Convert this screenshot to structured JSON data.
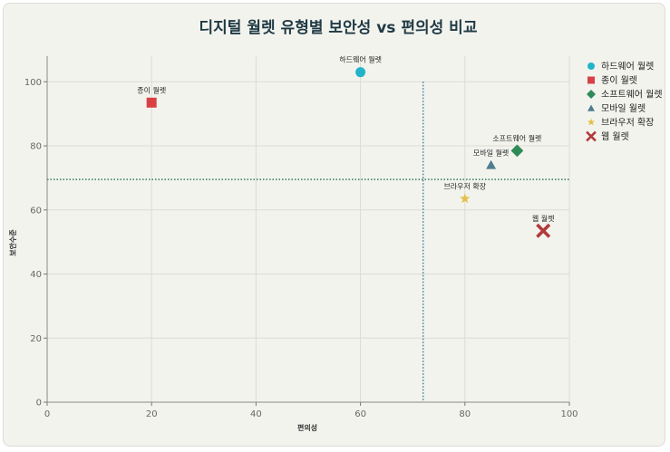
{
  "chart_data": {
    "type": "scatter",
    "title": "디지털 월렛 유형별 보안성 vs 편의성 비교",
    "xlabel": "편의성",
    "ylabel": "보안수준",
    "xlim": [
      0,
      100
    ],
    "ylim": [
      0,
      108
    ],
    "xticks": [
      0,
      20,
      40,
      60,
      80,
      100
    ],
    "yticks": [
      0,
      20,
      40,
      60,
      80,
      100
    ],
    "grid": true,
    "legend_position": "right",
    "reference_lines": {
      "x": 72,
      "y": 69.5
    },
    "series": [
      {
        "name": "하드웨어 월렛",
        "label": "하드웨어 월렛",
        "marker": "circle",
        "color": "#22b5c9",
        "x": 60,
        "y": 103
      },
      {
        "name": "종이 월렛",
        "label": "종이 월렛",
        "marker": "square",
        "color": "#d94045",
        "x": 20,
        "y": 93.5
      },
      {
        "name": "소프트웨어 월렛",
        "label": "소프트웨어 월렛",
        "marker": "diamond",
        "color": "#2e8b57",
        "x": 90,
        "y": 78.5
      },
      {
        "name": "모바일 월렛",
        "label": "모바일 월렛",
        "marker": "triangle",
        "color": "#4e7d8f",
        "x": 85,
        "y": 74
      },
      {
        "name": "브라우저 확장",
        "label": "브라우저 확장",
        "marker": "star",
        "color": "#e3c04a",
        "x": 80,
        "y": 63.5
      },
      {
        "name": "웹 월렛",
        "label": "웹 월렛",
        "marker": "x",
        "color": "#b03a3d",
        "x": 95,
        "y": 53.5
      }
    ]
  }
}
